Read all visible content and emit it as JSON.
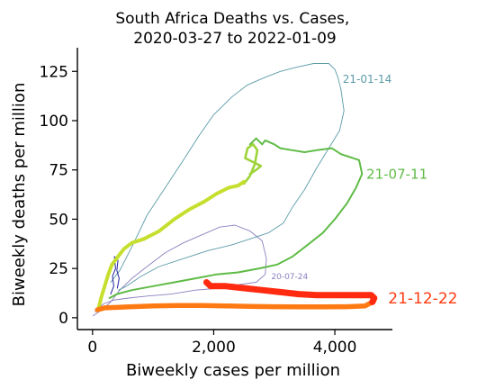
{
  "chart_data": {
    "type": "line",
    "title": "South Africa Deaths vs. Cases,\n2020-03-27 to 2022-01-09",
    "xlabel": "Biweekly cases per million",
    "ylabel": "Biweekly deaths per million",
    "xlim": [
      -250,
      4950
    ],
    "ylim": [
      -6,
      137
    ],
    "xticks": [
      0,
      2000,
      4000
    ],
    "xtick_labels": [
      "0",
      "2,000",
      "4,000"
    ],
    "yticks": [
      0,
      25,
      50,
      75,
      100,
      125
    ],
    "ytick_labels": [
      "0",
      "25",
      "50",
      "75",
      "100",
      "125"
    ],
    "grid": false,
    "series": [
      {
        "name": "20-07-24",
        "color": "#8a80bf",
        "label_color": "#8a80bf",
        "label_size": 9,
        "width": 0.9,
        "label_at": [
          2950,
          21
        ],
        "points": [
          [
            10,
            1
          ],
          [
            150,
            4
          ],
          [
            300,
            8
          ],
          [
            450,
            14
          ],
          [
            650,
            20
          ],
          [
            900,
            26
          ],
          [
            1200,
            33
          ],
          [
            1500,
            38
          ],
          [
            1800,
            42
          ],
          [
            2100,
            46
          ],
          [
            2350,
            47
          ],
          [
            2600,
            44
          ],
          [
            2800,
            39
          ],
          [
            2870,
            30
          ],
          [
            2850,
            22
          ],
          [
            2700,
            18
          ],
          [
            2450,
            17
          ],
          [
            2100,
            15
          ],
          [
            1700,
            14
          ],
          [
            1300,
            12
          ],
          [
            900,
            11
          ],
          [
            600,
            10
          ],
          [
            350,
            9
          ],
          [
            180,
            7
          ],
          [
            80,
            4
          ],
          [
            40,
            3
          ]
        ]
      },
      {
        "name": "21-01-14",
        "color": "#5b9aa8",
        "label_color": "#5b9aa8",
        "label_size": 12,
        "width": 0.9,
        "label_at": [
          4130,
          121
        ],
        "points": [
          [
            300,
            18
          ],
          [
            450,
            24
          ],
          [
            650,
            36
          ],
          [
            900,
            52
          ],
          [
            1200,
            66
          ],
          [
            1500,
            80
          ],
          [
            1750,
            92
          ],
          [
            2000,
            103
          ],
          [
            2300,
            112
          ],
          [
            2550,
            118
          ],
          [
            2850,
            122
          ],
          [
            3100,
            125
          ],
          [
            3350,
            127
          ],
          [
            3650,
            129
          ],
          [
            3900,
            129
          ],
          [
            4000,
            126
          ],
          [
            4050,
            122
          ],
          [
            4100,
            116
          ],
          [
            4150,
            105
          ],
          [
            4080,
            95
          ],
          [
            3900,
            86
          ],
          [
            3700,
            76
          ],
          [
            3500,
            65
          ],
          [
            3300,
            56
          ],
          [
            3150,
            48
          ],
          [
            2900,
            43
          ],
          [
            2600,
            40
          ],
          [
            2300,
            37
          ],
          [
            1900,
            34
          ],
          [
            1500,
            30
          ],
          [
            1100,
            26
          ],
          [
            800,
            21
          ],
          [
            560,
            16
          ],
          [
            430,
            14
          ]
        ]
      },
      {
        "name": "",
        "color": "#2222a0",
        "label_color": "#2222a0",
        "label_size": 9,
        "width": 1.0,
        "label_at": null,
        "points": [
          [
            300,
            12
          ],
          [
            350,
            16
          ],
          [
            330,
            21
          ],
          [
            380,
            25
          ],
          [
            360,
            31
          ],
          [
            420,
            29
          ],
          [
            400,
            24
          ],
          [
            440,
            20
          ],
          [
            410,
            15
          ]
        ]
      },
      {
        "name": "21-07-11",
        "color": "#5fbb46",
        "label_color": "#5fbb46",
        "label_size": 15,
        "width": 2.0,
        "label_at": [
          4520,
          73
        ],
        "points": [
          [
            280,
            10
          ],
          [
            400,
            12
          ],
          [
            650,
            14
          ],
          [
            1000,
            16
          ],
          [
            1350,
            18
          ],
          [
            1700,
            20
          ],
          [
            2050,
            22
          ],
          [
            2400,
            23
          ],
          [
            2750,
            25
          ],
          [
            3050,
            27
          ],
          [
            3300,
            31
          ],
          [
            3550,
            37
          ],
          [
            3800,
            43
          ],
          [
            4000,
            50
          ],
          [
            4200,
            58
          ],
          [
            4350,
            66
          ],
          [
            4450,
            73
          ],
          [
            4400,
            80
          ],
          [
            4300,
            81
          ],
          [
            4100,
            83
          ],
          [
            3950,
            86
          ],
          [
            3700,
            85
          ],
          [
            3500,
            84
          ],
          [
            3300,
            85
          ],
          [
            3100,
            86
          ],
          [
            3000,
            88
          ],
          [
            2850,
            90
          ],
          [
            2800,
            88
          ],
          [
            2700,
            91
          ],
          [
            2600,
            88
          ]
        ]
      },
      {
        "name": "",
        "color": "#9ed43a",
        "label_color": "#9ed43a",
        "label_size": 12,
        "width": 2.6,
        "label_at": null,
        "points": [
          [
            2500,
            68
          ],
          [
            2600,
            72
          ],
          [
            2680,
            78
          ],
          [
            2720,
            85
          ],
          [
            2650,
            88
          ],
          [
            2560,
            86
          ],
          [
            2520,
            81
          ],
          [
            2650,
            79
          ],
          [
            2780,
            77
          ],
          [
            2700,
            75
          ],
          [
            2600,
            73
          ]
        ]
      },
      {
        "name": "",
        "color": "#c6df2e",
        "label_color": "#c6df2e",
        "label_size": 12,
        "width": 4.0,
        "label_at": null,
        "points": [
          [
            100,
            5
          ],
          [
            140,
            10
          ],
          [
            200,
            16
          ],
          [
            260,
            22
          ],
          [
            320,
            27
          ],
          [
            420,
            31
          ],
          [
            520,
            35
          ],
          [
            650,
            38
          ],
          [
            850,
            40
          ],
          [
            1100,
            44
          ],
          [
            1350,
            50
          ],
          [
            1600,
            55
          ],
          [
            1850,
            59
          ],
          [
            2050,
            63
          ],
          [
            2250,
            66
          ],
          [
            2400,
            67
          ],
          [
            2500,
            69
          ]
        ]
      },
      {
        "name": "",
        "color": "#ff7a12",
        "label_color": "#ff7a12",
        "label_size": 12,
        "width": 5.5,
        "label_at": null,
        "points": [
          [
            80,
            4
          ],
          [
            200,
            5
          ],
          [
            600,
            5.5
          ],
          [
            1000,
            6
          ],
          [
            1400,
            6.2
          ],
          [
            1800,
            6.2
          ],
          [
            2200,
            6
          ],
          [
            2600,
            5.8
          ],
          [
            3000,
            5.6
          ],
          [
            3400,
            5.5
          ],
          [
            3800,
            5.5
          ],
          [
            4200,
            5.6
          ],
          [
            4500,
            6
          ],
          [
            4620,
            8
          ]
        ]
      },
      {
        "name": "21-12-22",
        "color": "#ff2a10",
        "label_color": "#ff3a10",
        "label_size": 17,
        "width": 7.0,
        "label_at": [
          4880,
          10
        ],
        "points": [
          [
            4620,
            8
          ],
          [
            4650,
            10
          ],
          [
            4600,
            11.5
          ],
          [
            4300,
            11.5
          ],
          [
            4000,
            11.5
          ],
          [
            3700,
            11.5
          ],
          [
            3400,
            12
          ],
          [
            3100,
            13
          ],
          [
            2800,
            14
          ],
          [
            2500,
            15
          ],
          [
            2200,
            16
          ],
          [
            1950,
            16
          ],
          [
            1880,
            18
          ]
        ]
      }
    ]
  }
}
